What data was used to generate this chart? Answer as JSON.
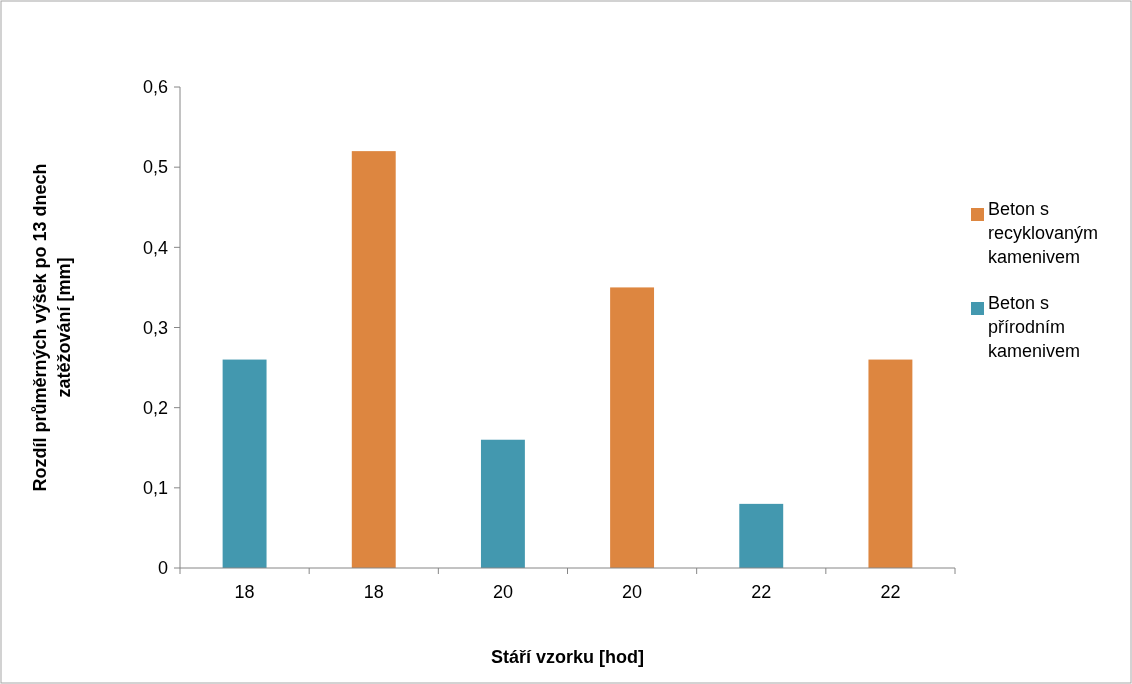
{
  "chart_data": {
    "type": "bar",
    "xlabel": "Stáří vzorku [hod]",
    "ylabel": "Rozdíl průměrných výšek po 13 dnech\nzatěžování [mm]",
    "categories": [
      "18",
      "18",
      "20",
      "20",
      "22",
      "22"
    ],
    "series": [
      {
        "name": "Beton s recyklovaným kamenivem",
        "color": "#dd8640",
        "values": [
          null,
          0.52,
          null,
          0.35,
          null,
          0.26
        ]
      },
      {
        "name": "Beton s přírodním kamenivem",
        "color": "#4398af",
        "values": [
          0.26,
          null,
          0.16,
          null,
          0.08,
          null
        ]
      }
    ],
    "ylim": [
      0,
      0.6
    ],
    "yticks": [
      0,
      {
        "value": 0.1,
        "label": "0,1"
      },
      {
        "value": 0.2,
        "label": "0,2"
      },
      {
        "value": 0.3,
        "label": "0,3"
      },
      {
        "value": 0.4,
        "label": "0,4"
      },
      {
        "value": 0.5,
        "label": "0,5"
      },
      {
        "value": 0.6,
        "label": "0,6"
      }
    ],
    "grid": false,
    "legend": "right"
  }
}
